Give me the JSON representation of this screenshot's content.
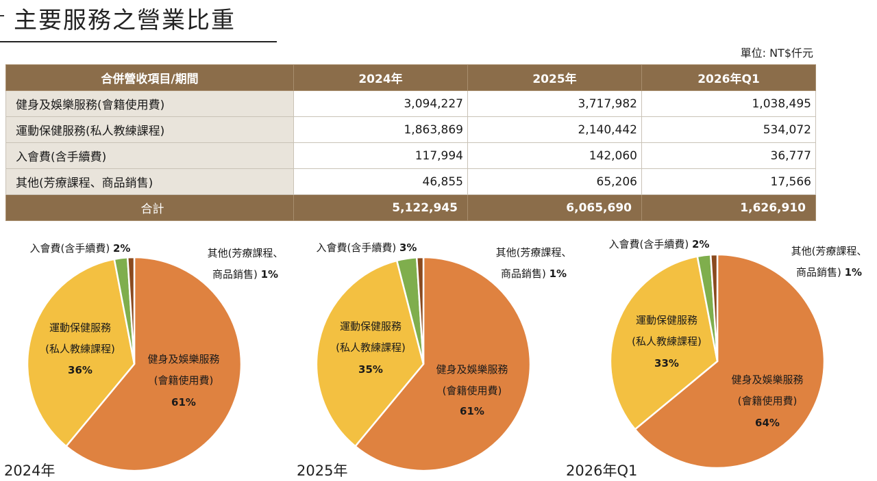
{
  "page": {
    "title": "主要服務之營業比重",
    "unit": "單位: NT$仟元"
  },
  "table": {
    "headers": [
      "合併營收項目/期間",
      "2024年",
      "2025年",
      "2026年Q1"
    ],
    "rows": [
      {
        "label": "健身及娛樂服務(會籍使用費)",
        "values": [
          "3,094,227",
          "3,717,982",
          "1,038,495"
        ]
      },
      {
        "label": "運動保健服務(私人教練課程)",
        "values": [
          "1,863,869",
          "2,140,442",
          "534,072"
        ]
      },
      {
        "label": "入會費(含手續費)",
        "values": [
          "117,994",
          "142,060",
          "36,777"
        ]
      },
      {
        "label": "其他(芳療課程、商品銷售)",
        "values": [
          "46,855",
          "65,206",
          "17,566"
        ]
      }
    ],
    "total": {
      "label": "合計",
      "values": [
        "5,122,945",
        "6,065,690",
        "1,626,910"
      ]
    }
  },
  "chart_data": [
    {
      "type": "pie",
      "title": "2024年",
      "slices": [
        {
          "label": [
            "健身及娛樂服務",
            "(會籍使用費)"
          ],
          "value": 61,
          "pct_text": "61%",
          "color": "#df8240"
        },
        {
          "label": [
            "運動保健服務",
            "(私人教練課程)"
          ],
          "value": 36,
          "pct_text": "36%",
          "color": "#f3c041"
        },
        {
          "label": [
            "入會費(含手續費)"
          ],
          "value": 2,
          "pct_text": "2%",
          "color": "#7fae4d"
        },
        {
          "label": [
            "其他(芳療課程、",
            "商品銷售)"
          ],
          "value": 1,
          "pct_text": "1%",
          "color": "#8a4a1f"
        }
      ]
    },
    {
      "type": "pie",
      "title": "2025年",
      "slices": [
        {
          "label": [
            "健身及娛樂服務",
            "(會籍使用費)"
          ],
          "value": 61,
          "pct_text": "61%",
          "color": "#df8240"
        },
        {
          "label": [
            "運動保健服務",
            "(私人教練課程)"
          ],
          "value": 35,
          "pct_text": "35%",
          "color": "#f3c041"
        },
        {
          "label": [
            "入會費(含手續費)"
          ],
          "value": 3,
          "pct_text": "3%",
          "color": "#7fae4d"
        },
        {
          "label": [
            "其他(芳療課程、",
            "商品銷售)"
          ],
          "value": 1,
          "pct_text": "1%",
          "color": "#8a4a1f"
        }
      ]
    },
    {
      "type": "pie",
      "title": "2026年Q1",
      "slices": [
        {
          "label": [
            "健身及娛樂服務",
            "(會籍使用費)"
          ],
          "value": 64,
          "pct_text": "64%",
          "color": "#df8240"
        },
        {
          "label": [
            "運動保健服務",
            "(私人教練課程)"
          ],
          "value": 33,
          "pct_text": "33%",
          "color": "#f3c041"
        },
        {
          "label": [
            "入會費(含手續費)"
          ],
          "value": 2,
          "pct_text": "2%",
          "color": "#7fae4d"
        },
        {
          "label": [
            "其他(芳療課程、",
            "商品銷售)"
          ],
          "value": 1,
          "pct_text": "1%",
          "color": "#8a4a1f"
        }
      ]
    }
  ]
}
